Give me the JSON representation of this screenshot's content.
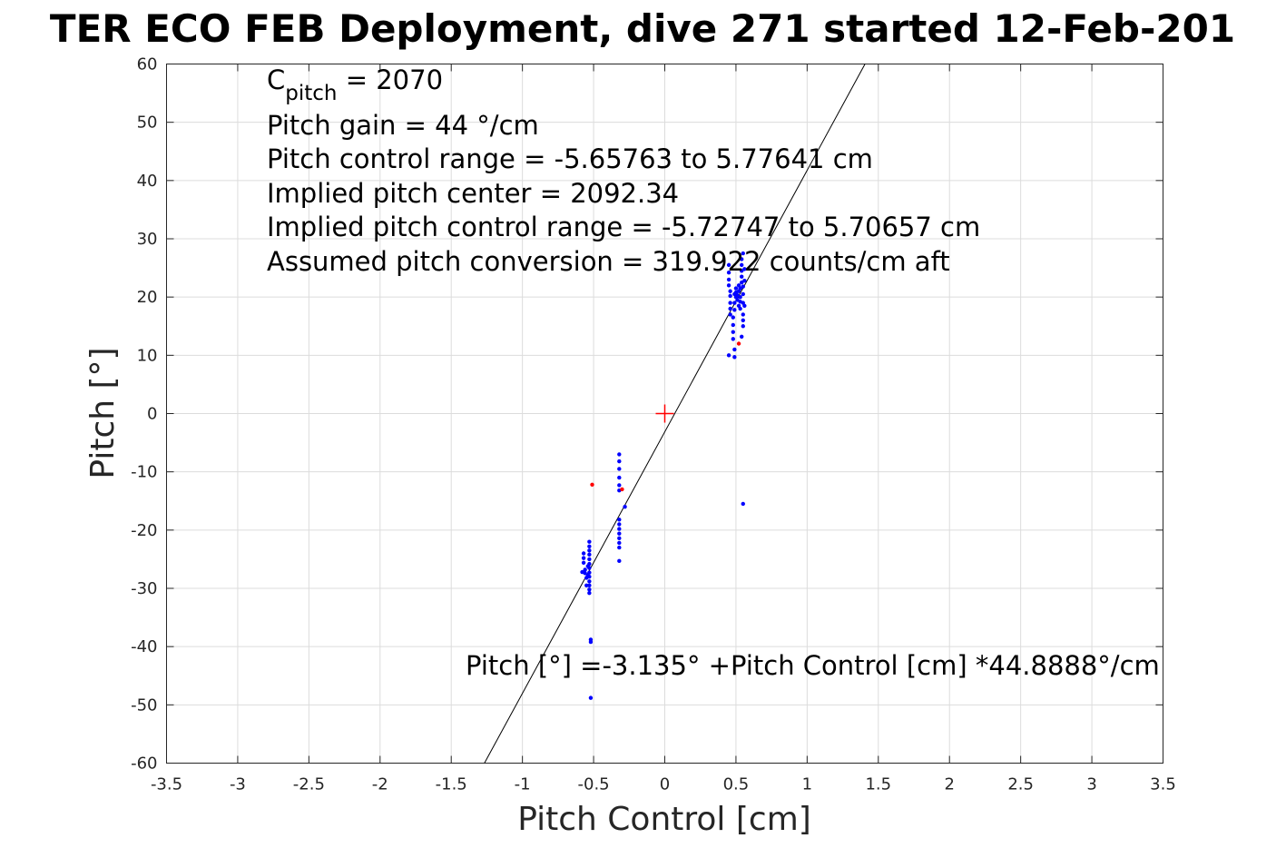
{
  "chart_data": {
    "type": "scatter",
    "title": "TER ECO FEB Deployment, dive 271 started 12-Feb-201",
    "xlabel": "Pitch Control [cm]",
    "ylabel": "Pitch [°]",
    "xlim": [
      -3.5,
      3.5
    ],
    "ylim": [
      -60,
      60
    ],
    "grid": true,
    "x_ticks": [
      -3.5,
      -3,
      -2.5,
      -2,
      -1.5,
      -1,
      -0.5,
      0,
      0.5,
      1,
      1.5,
      2,
      2.5,
      3,
      3.5
    ],
    "x_tick_labels": [
      "-3.5",
      "-3",
      "-2.5",
      "-2",
      "-1.5",
      "-1",
      "-0.5",
      "0",
      "0.5",
      "1",
      "1.5",
      "2",
      "2.5",
      "3",
      "3.5"
    ],
    "y_ticks": [
      -60,
      -50,
      -40,
      -30,
      -20,
      -10,
      0,
      10,
      20,
      30,
      40,
      50,
      60
    ],
    "y_tick_labels": [
      "-60",
      "-50",
      "-40",
      "-30",
      "-20",
      "-10",
      "0",
      "10",
      "20",
      "30",
      "40",
      "50",
      "60"
    ],
    "annotations": {
      "c_pitch_symbol": "C",
      "c_pitch_subscript": "pitch",
      "c_pitch_value": " = 2070",
      "lines": [
        "Pitch gain = 44 °/cm",
        "Pitch control range = -5.65763 to 5.77641 cm",
        "Implied pitch center = 2092.34",
        "Implied pitch control range = -5.72747 to 5.70657 cm",
        "Assumed pitch conversion = 319.922 counts/cm aft"
      ],
      "fit_equation": "Pitch [°] =-3.135° +Pitch Control [cm] *44.8888°/cm"
    },
    "fit_line": {
      "intercept": -3.135,
      "slope": 44.8888,
      "color": "#000000"
    },
    "center_marker": {
      "x": 0,
      "y": 0,
      "color": "#ff0000"
    },
    "series": [
      {
        "color": "#0000ff",
        "points": [
          [
            -0.57,
            -24.0
          ],
          [
            -0.57,
            -24.8
          ],
          [
            -0.57,
            -25.6
          ],
          [
            -0.56,
            -26.8
          ],
          [
            -0.56,
            -27.4
          ],
          [
            -0.58,
            -27.2
          ],
          [
            -0.55,
            -28.2
          ],
          [
            -0.55,
            -29.5
          ],
          [
            -0.53,
            -22.0
          ],
          [
            -0.53,
            -22.8
          ],
          [
            -0.53,
            -23.5
          ],
          [
            -0.53,
            -24.2
          ],
          [
            -0.53,
            -25.0
          ],
          [
            -0.53,
            -25.8
          ],
          [
            -0.53,
            -26.5
          ],
          [
            -0.53,
            -27.3
          ],
          [
            -0.53,
            -28.0
          ],
          [
            -0.53,
            -28.8
          ],
          [
            -0.53,
            -29.5
          ],
          [
            -0.53,
            -30.2
          ],
          [
            -0.53,
            -30.8
          ],
          [
            -0.54,
            -26.2
          ],
          [
            -0.54,
            -27.8
          ],
          [
            -0.52,
            -38.8
          ],
          [
            -0.52,
            -39.2
          ],
          [
            -0.52,
            -48.8
          ],
          [
            -0.32,
            -7.0
          ],
          [
            -0.32,
            -8.2
          ],
          [
            -0.32,
            -9.5
          ],
          [
            -0.32,
            -11.0
          ],
          [
            -0.32,
            -12.3
          ],
          [
            -0.32,
            -13.2
          ],
          [
            -0.32,
            -18.2
          ],
          [
            -0.32,
            -19.0
          ],
          [
            -0.32,
            -19.8
          ],
          [
            -0.32,
            -20.6
          ],
          [
            -0.32,
            -21.4
          ],
          [
            -0.32,
            -22.2
          ],
          [
            -0.32,
            -23.0
          ],
          [
            -0.32,
            -25.3
          ],
          [
            -0.28,
            -16.0
          ],
          [
            0.45,
            25.5
          ],
          [
            0.45,
            24.2
          ],
          [
            0.45,
            23.0
          ],
          [
            0.45,
            22.0
          ],
          [
            0.46,
            21.0
          ],
          [
            0.46,
            20.2
          ],
          [
            0.46,
            19.0
          ],
          [
            0.46,
            18.0
          ],
          [
            0.46,
            17.0
          ],
          [
            0.45,
            10.0
          ],
          [
            0.48,
            12.8
          ],
          [
            0.48,
            14.0
          ],
          [
            0.48,
            15.2
          ],
          [
            0.48,
            16.5
          ],
          [
            0.49,
            17.8
          ],
          [
            0.49,
            19.0
          ],
          [
            0.49,
            20.5
          ],
          [
            0.49,
            11.0
          ],
          [
            0.49,
            9.7
          ],
          [
            0.5,
            20.0
          ],
          [
            0.5,
            20.8
          ],
          [
            0.5,
            21.5
          ],
          [
            0.51,
            19.5
          ],
          [
            0.51,
            20.3
          ],
          [
            0.52,
            18.5
          ],
          [
            0.52,
            21.0
          ],
          [
            0.52,
            22.0
          ],
          [
            0.53,
            20.0
          ],
          [
            0.53,
            19.2
          ],
          [
            0.53,
            21.5
          ],
          [
            0.54,
            22.5
          ],
          [
            0.54,
            23.5
          ],
          [
            0.54,
            24.5
          ],
          [
            0.54,
            25.5
          ],
          [
            0.54,
            26.5
          ],
          [
            0.55,
            27.5
          ],
          [
            0.55,
            20.5
          ],
          [
            0.55,
            21.8
          ],
          [
            0.55,
            19.0
          ],
          [
            0.55,
            17.0
          ],
          [
            0.55,
            16.0
          ],
          [
            0.55,
            15.0
          ],
          [
            0.54,
            13.2
          ],
          [
            0.56,
            18.5
          ],
          [
            0.56,
            22.8
          ],
          [
            0.56,
            24.8
          ],
          [
            0.53,
            18.0
          ],
          [
            0.55,
            -15.5
          ]
        ]
      },
      {
        "color": "#ff0000",
        "points": [
          [
            -0.51,
            -12.2
          ],
          [
            -0.3,
            -13.0
          ],
          [
            0.52,
            12.0
          ]
        ]
      }
    ]
  }
}
